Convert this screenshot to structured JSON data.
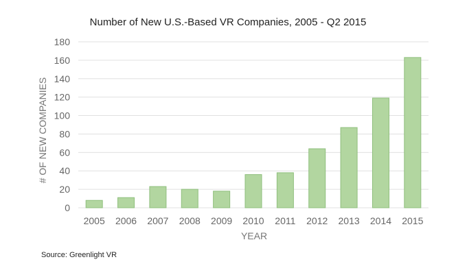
{
  "chart_data": {
    "type": "bar",
    "title": "Number of New U.S.-Based VR Companies, 2005 - Q2 2015",
    "xlabel": "YEAR",
    "ylabel": "# OF NEW COMPANIES",
    "categories": [
      "2005",
      "2006",
      "2007",
      "2008",
      "2009",
      "2010",
      "2011",
      "2012",
      "2013",
      "2014",
      "2015"
    ],
    "series": [
      {
        "name": "New companies",
        "values": [
          8,
          11,
          23,
          20,
          18,
          36,
          38,
          64,
          87,
          119,
          163
        ]
      }
    ],
    "ylim": [
      0,
      180
    ],
    "yticks": [
      0,
      20,
      40,
      60,
      80,
      100,
      120,
      140,
      160,
      180
    ],
    "grid": true,
    "legend": "none"
  },
  "colors": {
    "bar_fill": "#b2d6a0",
    "bar_stroke": "#8fbf7d",
    "gridline": "#e0e0e0"
  },
  "source": "Source: Greenlight VR"
}
